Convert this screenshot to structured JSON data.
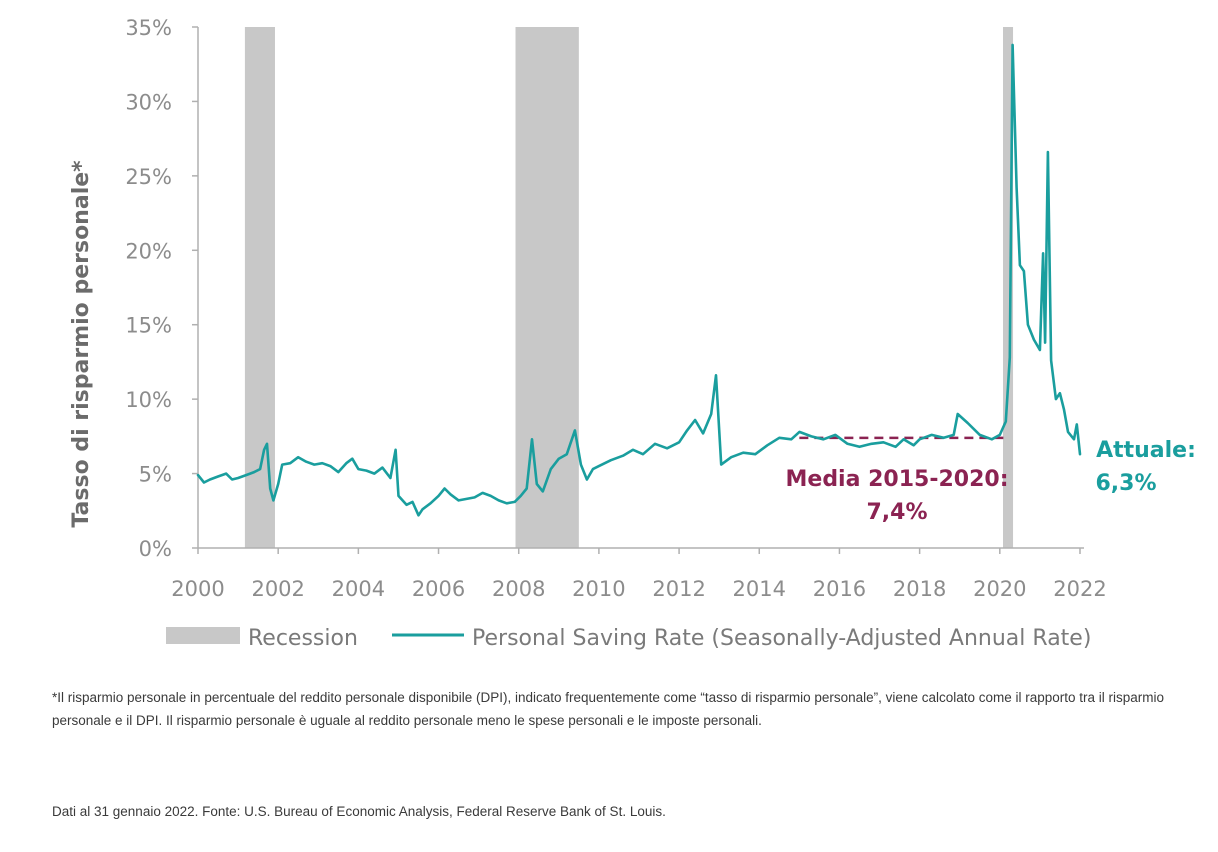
{
  "chart_data": {
    "type": "line",
    "ylabel": "Tasso di risparmio personale*",
    "ylim": [
      0,
      35
    ],
    "yticks": [
      0,
      5,
      10,
      15,
      20,
      25,
      30,
      35
    ],
    "ytick_labels": [
      "0%",
      "5%",
      "10%",
      "15%",
      "20%",
      "25%",
      "30%",
      "35%"
    ],
    "xlim": [
      2000,
      2022.1
    ],
    "xticks": [
      2000,
      2002,
      2004,
      2006,
      2008,
      2010,
      2012,
      2014,
      2016,
      2018,
      2020,
      2022
    ],
    "xtick_labels": [
      "2000",
      "2002",
      "2004",
      "2006",
      "2008",
      "2010",
      "2012",
      "2014",
      "2016",
      "2018",
      "2020",
      "2022"
    ],
    "recessions": [
      [
        2001.17,
        2001.92
      ],
      [
        2007.92,
        2009.5
      ],
      [
        2020.08,
        2020.33
      ]
    ],
    "series": [
      {
        "name": "Personal Saving Rate (Seasonally-Adjusted Annual Rate)",
        "color": "#1a9e9e",
        "points": [
          [
            2000.0,
            4.9
          ],
          [
            2000.15,
            4.4
          ],
          [
            2000.3,
            4.6
          ],
          [
            2000.5,
            4.8
          ],
          [
            2000.7,
            5.0
          ],
          [
            2000.85,
            4.6
          ],
          [
            2001.0,
            4.7
          ],
          [
            2001.2,
            4.9
          ],
          [
            2001.4,
            5.1
          ],
          [
            2001.55,
            5.3
          ],
          [
            2001.65,
            6.6
          ],
          [
            2001.72,
            7.0
          ],
          [
            2001.8,
            4.0
          ],
          [
            2001.88,
            3.2
          ],
          [
            2002.0,
            4.3
          ],
          [
            2002.1,
            5.6
          ],
          [
            2002.3,
            5.7
          ],
          [
            2002.5,
            6.1
          ],
          [
            2002.7,
            5.8
          ],
          [
            2002.9,
            5.6
          ],
          [
            2003.1,
            5.7
          ],
          [
            2003.3,
            5.5
          ],
          [
            2003.5,
            5.1
          ],
          [
            2003.7,
            5.7
          ],
          [
            2003.85,
            6.0
          ],
          [
            2004.0,
            5.3
          ],
          [
            2004.2,
            5.2
          ],
          [
            2004.4,
            5.0
          ],
          [
            2004.6,
            5.4
          ],
          [
            2004.8,
            4.7
          ],
          [
            2004.93,
            6.6
          ],
          [
            2005.0,
            3.5
          ],
          [
            2005.2,
            2.9
          ],
          [
            2005.35,
            3.1
          ],
          [
            2005.5,
            2.2
          ],
          [
            2005.6,
            2.6
          ],
          [
            2005.8,
            3.0
          ],
          [
            2006.0,
            3.5
          ],
          [
            2006.15,
            4.0
          ],
          [
            2006.3,
            3.6
          ],
          [
            2006.5,
            3.2
          ],
          [
            2006.7,
            3.3
          ],
          [
            2006.9,
            3.4
          ],
          [
            2007.1,
            3.7
          ],
          [
            2007.3,
            3.5
          ],
          [
            2007.5,
            3.2
          ],
          [
            2007.7,
            3.0
          ],
          [
            2007.9,
            3.1
          ],
          [
            2008.05,
            3.5
          ],
          [
            2008.2,
            4.0
          ],
          [
            2008.33,
            7.3
          ],
          [
            2008.45,
            4.3
          ],
          [
            2008.6,
            3.8
          ],
          [
            2008.8,
            5.3
          ],
          [
            2009.0,
            6.0
          ],
          [
            2009.2,
            6.3
          ],
          [
            2009.4,
            7.9
          ],
          [
            2009.55,
            5.6
          ],
          [
            2009.7,
            4.6
          ],
          [
            2009.85,
            5.3
          ],
          [
            2010.0,
            5.5
          ],
          [
            2010.3,
            5.9
          ],
          [
            2010.6,
            6.2
          ],
          [
            2010.85,
            6.6
          ],
          [
            2011.1,
            6.3
          ],
          [
            2011.4,
            7.0
          ],
          [
            2011.7,
            6.7
          ],
          [
            2012.0,
            7.1
          ],
          [
            2012.2,
            7.9
          ],
          [
            2012.4,
            8.6
          ],
          [
            2012.6,
            7.7
          ],
          [
            2012.8,
            9.0
          ],
          [
            2012.92,
            11.6
          ],
          [
            2013.05,
            5.6
          ],
          [
            2013.3,
            6.1
          ],
          [
            2013.6,
            6.4
          ],
          [
            2013.9,
            6.3
          ],
          [
            2014.2,
            6.9
          ],
          [
            2014.5,
            7.4
          ],
          [
            2014.8,
            7.3
          ],
          [
            2015.0,
            7.8
          ],
          [
            2015.3,
            7.5
          ],
          [
            2015.6,
            7.3
          ],
          [
            2015.9,
            7.6
          ],
          [
            2016.2,
            7.0
          ],
          [
            2016.5,
            6.8
          ],
          [
            2016.8,
            7.0
          ],
          [
            2017.1,
            7.1
          ],
          [
            2017.4,
            6.8
          ],
          [
            2017.6,
            7.3
          ],
          [
            2017.85,
            6.9
          ],
          [
            2018.0,
            7.3
          ],
          [
            2018.3,
            7.6
          ],
          [
            2018.6,
            7.4
          ],
          [
            2018.85,
            7.6
          ],
          [
            2018.95,
            9.0
          ],
          [
            2019.2,
            8.4
          ],
          [
            2019.5,
            7.6
          ],
          [
            2019.8,
            7.3
          ],
          [
            2020.0,
            7.6
          ],
          [
            2020.15,
            8.5
          ],
          [
            2020.25,
            12.8
          ],
          [
            2020.32,
            33.8
          ],
          [
            2020.42,
            24.2
          ],
          [
            2020.5,
            19.0
          ],
          [
            2020.6,
            18.6
          ],
          [
            2020.7,
            15.0
          ],
          [
            2020.85,
            14.0
          ],
          [
            2021.0,
            13.3
          ],
          [
            2021.08,
            19.8
          ],
          [
            2021.13,
            13.8
          ],
          [
            2021.2,
            26.6
          ],
          [
            2021.28,
            12.6
          ],
          [
            2021.4,
            10.0
          ],
          [
            2021.5,
            10.4
          ],
          [
            2021.6,
            9.3
          ],
          [
            2021.7,
            7.8
          ],
          [
            2021.85,
            7.3
          ],
          [
            2021.92,
            8.3
          ],
          [
            2022.0,
            6.3
          ]
        ]
      }
    ],
    "average_line": {
      "from": 2015,
      "to": 2020.2,
      "value": 7.4,
      "color": "#8b2352"
    },
    "annotations": {
      "average_line1": "Media 2015-2020:",
      "average_line2": "7,4%",
      "current_line1": "Attuale:",
      "current_line2": "6,3%"
    },
    "legend": [
      {
        "label": "Recession",
        "kind": "patch",
        "color": "#c8c8c8"
      },
      {
        "label": "Personal Saving Rate (Seasonally-Adjusted Annual Rate)",
        "kind": "line",
        "color": "#1a9e9e"
      }
    ]
  },
  "footnotes": {
    "definition": "*Il risparmio personale in percentuale del reddito personale disponibile (DPI), indicato frequentemente come “tasso di risparmio personale”, viene calcolato come il rapporto tra il risparmio personale e il DPI. Il risparmio personale è uguale al reddito personale meno le spese personali e le imposte personali.",
    "source": "Dati al 31 gennaio 2022. Fonte: U.S. Bureau of Economic Analysis, Federal Reserve Bank of St. Louis."
  }
}
